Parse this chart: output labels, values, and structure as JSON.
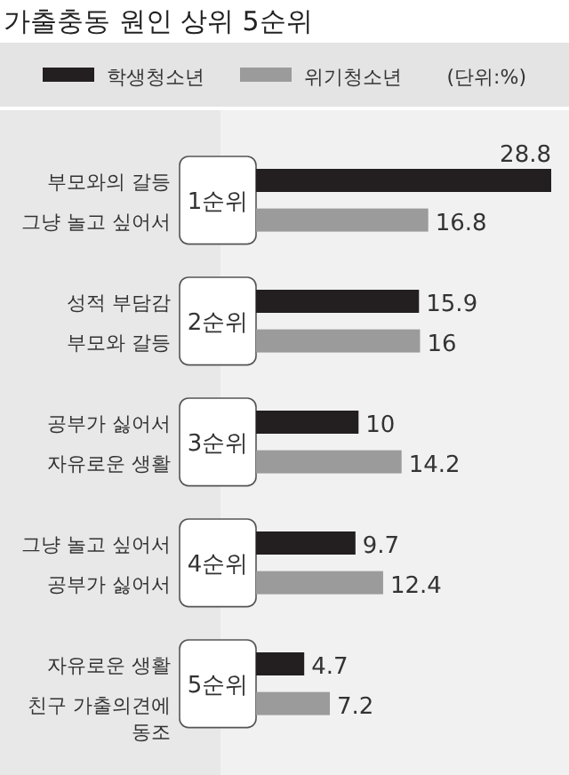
{
  "chart_data": {
    "type": "bar",
    "orientation": "horizontal",
    "title": "가출충동 원인 상위 5순위",
    "categories": [
      "부모와의 갈등",
      "그냥 놀고 싶어서",
      "성적 부담감",
      "부모와 갈등",
      "공부가 싫어서",
      "자유로운 생활",
      "그냥 놀고 싶어서",
      "공부가 싫어서",
      "자유로운 생활",
      "친구 가출의견에 동조"
    ],
    "series": [
      {
        "name": "학생청소년",
        "color": "#231f20",
        "values": [
          28.8,
          null,
          15.9,
          null,
          10,
          null,
          9.7,
          null,
          4.7,
          null
        ]
      },
      {
        "name": "위기청소년",
        "color": "#9b9b9b",
        "values": [
          null,
          16.8,
          null,
          16,
          null,
          14.2,
          null,
          12.4,
          null,
          7.2
        ]
      }
    ],
    "data_labels": true,
    "legend": "top",
    "annotations": [
      "(단위:%)",
      "1순위",
      "2순위",
      "3순위",
      "4순위",
      "5순위"
    ]
  }
}
